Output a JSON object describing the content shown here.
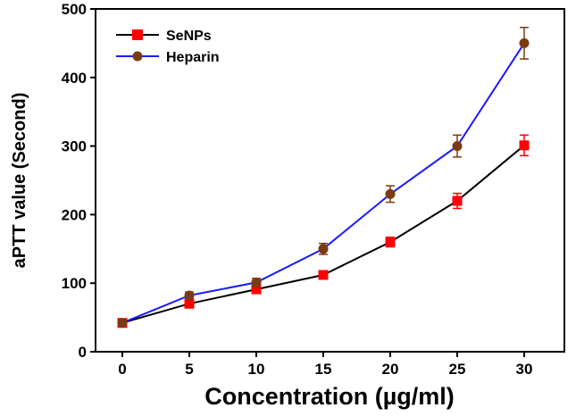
{
  "chart_data": {
    "type": "line",
    "x": [
      0,
      5,
      10,
      15,
      20,
      25,
      30
    ],
    "xlabel": "Concentration (µg/ml)",
    "ylabel": "aPTT value (Second)",
    "xlim": [
      -2,
      33
    ],
    "ylim": [
      0,
      500
    ],
    "xticks": [
      0,
      5,
      10,
      15,
      20,
      25,
      30
    ],
    "yticks": [
      0,
      100,
      200,
      300,
      400,
      500
    ],
    "legend_position": "top-left",
    "grid": false,
    "series": [
      {
        "name": "SeNPs",
        "values": [
          42,
          70,
          91,
          112,
          160,
          220,
          301
        ],
        "errors": [
          4,
          5,
          6,
          5,
          7,
          11,
          15
        ],
        "line_color": "#000000",
        "marker": "square",
        "marker_color": "#ff0000"
      },
      {
        "name": "Heparin",
        "values": [
          42,
          82,
          101,
          150,
          230,
          300,
          450
        ],
        "errors": [
          3,
          5,
          6,
          8,
          12,
          16,
          23
        ],
        "line_color": "#1a1aff",
        "marker": "circle",
        "marker_color": "#7a3b10"
      }
    ]
  }
}
